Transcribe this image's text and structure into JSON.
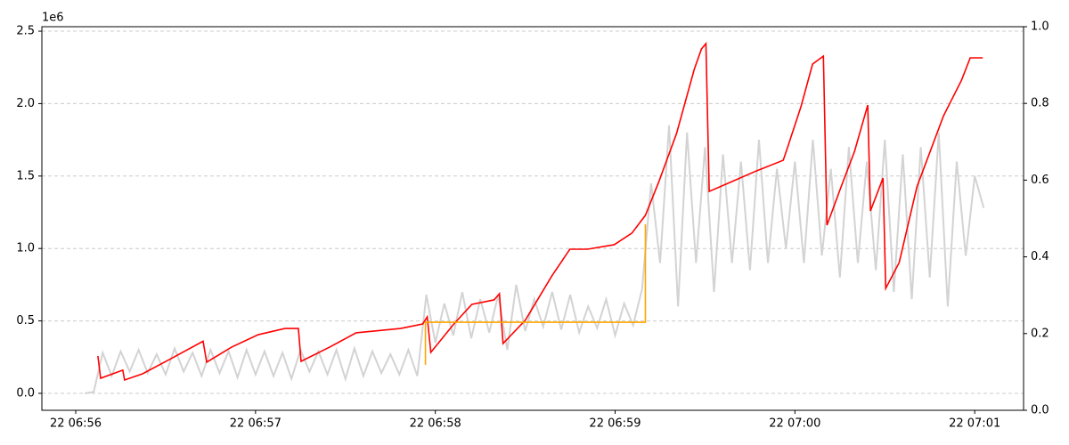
{
  "chart_data": {
    "type": "line",
    "y_offset_label": "1e6",
    "xlim": [
      24948.7,
      25276.3
    ],
    "xticks": [
      {
        "value": 24960,
        "label": "22 06:56"
      },
      {
        "value": 25020,
        "label": "22 06:57"
      },
      {
        "value": 25080,
        "label": "22 06:58"
      },
      {
        "value": 25140,
        "label": "22 06:59"
      },
      {
        "value": 25200,
        "label": "22 07:00"
      },
      {
        "value": 25260,
        "label": "22 07:01"
      }
    ],
    "ylim": [
      -117000,
      2531000
    ],
    "yticks": [
      {
        "value": 0,
        "label": "0.0"
      },
      {
        "value": 500000,
        "label": "0.5"
      },
      {
        "value": 1000000,
        "label": "1.0"
      },
      {
        "value": 1500000,
        "label": "1.5"
      },
      {
        "value": 2000000,
        "label": "2.0"
      },
      {
        "value": 2500000,
        "label": "2.5"
      }
    ],
    "y2lim": [
      0,
      1
    ],
    "y2ticks": [
      {
        "value": 0,
        "label": "0.0"
      },
      {
        "value": 0.2,
        "label": "0.2"
      },
      {
        "value": 0.4,
        "label": "0.4"
      },
      {
        "value": 0.6,
        "label": "0.6"
      },
      {
        "value": 0.8,
        "label": "0.8"
      },
      {
        "value": 1,
        "label": "1.0"
      }
    ],
    "grid": true,
    "series": [
      {
        "color": "#d3d3d3",
        "x": [
          24963,
          24966,
          24969,
          24972,
          24975,
          24978,
          24981,
          24984,
          24987,
          24990,
          24993,
          24996,
          24999,
          25002,
          25005,
          25008,
          25011,
          25014,
          25017,
          25020,
          25023,
          25026,
          25029,
          25032,
          25035,
          25038,
          25041,
          25044,
          25047,
          25050,
          25053,
          25056,
          25059,
          25062,
          25065,
          25068,
          25071,
          25074,
          25077,
          25080,
          25083,
          25086,
          25089,
          25092,
          25095,
          25098,
          25101,
          25104,
          25107,
          25110,
          25113,
          25116,
          25119,
          25122,
          25125,
          25128,
          25131,
          25134,
          25137,
          25140,
          25143,
          25146,
          25149,
          25152,
          25155,
          25158,
          25161,
          25164,
          25167,
          25170,
          25173,
          25176,
          25179,
          25182,
          25185,
          25188,
          25191,
          25194,
          25197,
          25200,
          25203,
          25206,
          25209,
          25212,
          25215,
          25218,
          25221,
          25224,
          25227,
          25230,
          25233,
          25236,
          25239,
          25242,
          25245,
          25248,
          25251,
          25254,
          25257,
          25260,
          25263
        ],
        "values": [
          0,
          10000,
          280000,
          120000,
          290000,
          150000,
          300000,
          140000,
          270000,
          130000,
          310000,
          150000,
          280000,
          120000,
          300000,
          140000,
          290000,
          110000,
          300000,
          130000,
          290000,
          120000,
          280000,
          100000,
          300000,
          150000,
          290000,
          130000,
          300000,
          100000,
          310000,
          120000,
          290000,
          140000,
          270000,
          130000,
          300000,
          120000,
          680000,
          350000,
          620000,
          400000,
          700000,
          380000,
          650000,
          420000,
          680000,
          300000,
          750000,
          430000,
          650000,
          460000,
          700000,
          440000,
          680000,
          420000,
          600000,
          450000,
          650000,
          400000,
          620000,
          470000,
          720000,
          1450000,
          900000,
          1850000,
          600000,
          1800000,
          900000,
          1700000,
          700000,
          1650000,
          900000,
          1600000,
          850000,
          1750000,
          900000,
          1550000,
          1000000,
          1600000,
          900000,
          1750000,
          950000,
          1550000,
          800000,
          1700000,
          900000,
          1600000,
          850000,
          1750000,
          700000,
          1650000,
          650000,
          1700000,
          800000,
          1800000,
          600000,
          1600000,
          950000,
          1500000,
          1280000
        ]
      },
      {
        "color": "#ff0000",
        "x": [
          24967.4,
          24968.3,
          24975.7,
          24976.3,
          24982.3,
          24991.2,
          25002.5,
          25003.7,
          25012,
          25020.9,
          25029.8,
          25034.3,
          25035.2,
          25044.7,
          25053.6,
          25068.4,
          25075.8,
          25077.3,
          25078.5,
          25086.2,
          25092.2,
          25099.6,
          25101.4,
          25102.6,
          25110,
          25118.9,
          25124.9,
          25130.8,
          25139.7,
          25145.6,
          25150.1,
          25154.5,
          25160.5,
          25166.4,
          25168.8,
          25170.3,
          25171.4,
          25178.3,
          25187.2,
          25196.1,
          25197.6,
          25202,
          25205.9,
          25209.5,
          25210.7,
          25215.4,
          25219.9,
          25224.3,
          25225.2,
          25229.4,
          25230.3,
          25234.8,
          25240.7,
          25249.6,
          25255.6,
          25258.5,
          25262.7
        ],
        "values": [
          258000,
          104000,
          160000,
          92000,
          135000,
          233000,
          360000,
          215000,
          319000,
          405000,
          448000,
          448000,
          221000,
          319000,
          418000,
          448000,
          479000,
          528000,
          283000,
          479000,
          614000,
          645000,
          688000,
          344000,
          504000,
          811000,
          995000,
          995000,
          1026000,
          1106000,
          1229000,
          1456000,
          1794000,
          2236000,
          2377000,
          2414000,
          1394000,
          1456000,
          1536000,
          1609000,
          1701000,
          1978000,
          2273000,
          2328000,
          1161000,
          1425000,
          1671000,
          1990000,
          1259000,
          1486000,
          725000,
          903000,
          1425000,
          1916000,
          2162000,
          2316000,
          2316000
        ]
      },
      {
        "color": "#ffa500",
        "x": [
          25076.7,
          25076.7,
          25150.1,
          25150.1
        ],
        "values": [
          197000,
          491000,
          491000,
          1167000
        ]
      }
    ]
  }
}
